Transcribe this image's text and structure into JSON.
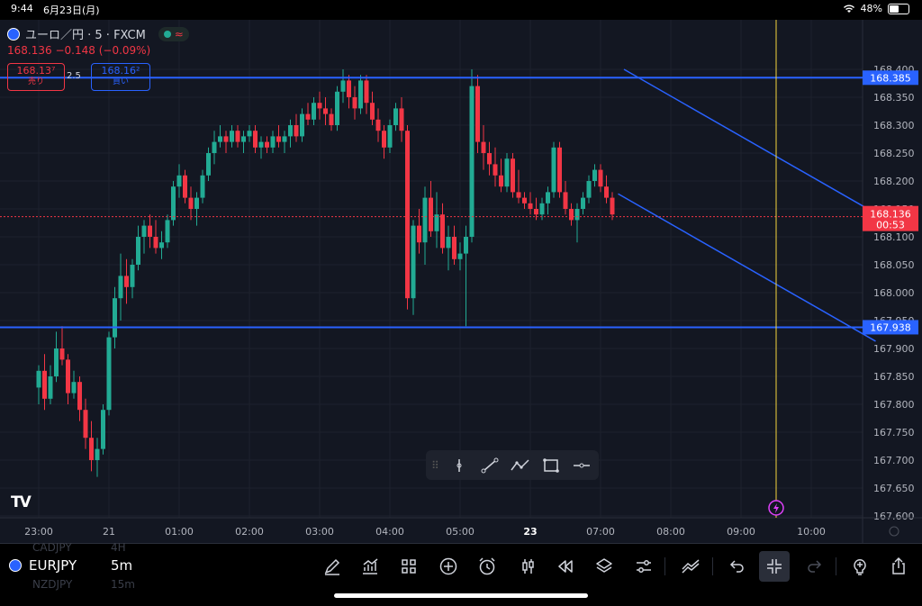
{
  "status": {
    "time": "9:44",
    "date": "6月23日(月)",
    "battery": "48%",
    "battery_level": 0.48
  },
  "header": {
    "symbol_title": "ユーロ／円 · 5 · FXCM",
    "last": "168.136",
    "change": "−0.148",
    "change_pct": "(−0.09%)"
  },
  "quotes": {
    "sell_price": "168.13⁷",
    "sell_label": "売り",
    "spread": "2.5",
    "buy_price": "168.16²",
    "buy_label": "買い"
  },
  "colors": {
    "bg": "#131722",
    "up": "#22ab94",
    "down": "#f23645",
    "line": "#2962ff",
    "cursor": "#f5d53d",
    "grid": "#1e222d"
  },
  "price_scale": {
    "min": 167.6,
    "max": 168.4,
    "step": 0.05,
    "ticks": [
      "168.400",
      "168.350",
      "168.300",
      "168.250",
      "168.200",
      "168.150",
      "168.100",
      "168.050",
      "168.000",
      "167.950",
      "167.900",
      "167.850",
      "167.800",
      "167.750",
      "167.700",
      "167.650",
      "167.600"
    ]
  },
  "time_axis": [
    {
      "label": "23:00",
      "t": 0
    },
    {
      "label": "21",
      "t": 12
    },
    {
      "label": "01:00",
      "t": 24
    },
    {
      "label": "02:00",
      "t": 36
    },
    {
      "label": "03:00",
      "t": 48
    },
    {
      "label": "04:00",
      "t": 60
    },
    {
      "label": "05:00",
      "t": 72
    },
    {
      "label": "23",
      "t": 84,
      "bold": true
    },
    {
      "label": "07:00",
      "t": 96
    },
    {
      "label": "08:00",
      "t": 108
    },
    {
      "label": "09:00",
      "t": 120
    },
    {
      "label": "10:00",
      "t": 132
    }
  ],
  "horizontal_lines": [
    {
      "price": 168.385,
      "label": "168.385"
    },
    {
      "price": 167.938,
      "label": "167.938"
    }
  ],
  "channel": {
    "upper": [
      {
        "t": 100,
        "p": 168.4
      },
      {
        "t": 143,
        "p": 168.142
      }
    ],
    "lower": [
      {
        "t": 99,
        "p": 168.177
      },
      {
        "t": 143,
        "p": 167.913
      }
    ]
  },
  "current": {
    "price": "168.136",
    "value": 168.136,
    "countdown": "00:53"
  },
  "cursor_t": 126,
  "candles": [
    [
      167.83,
      167.87,
      167.8,
      167.86
    ],
    [
      167.86,
      167.89,
      167.79,
      167.81
    ],
    [
      167.81,
      167.87,
      167.8,
      167.85
    ],
    [
      167.85,
      167.93,
      167.84,
      167.9
    ],
    [
      167.9,
      167.94,
      167.87,
      167.88
    ],
    [
      167.88,
      167.89,
      167.8,
      167.82
    ],
    [
      167.82,
      167.86,
      167.81,
      167.84
    ],
    [
      167.84,
      167.85,
      167.77,
      167.79
    ],
    [
      167.79,
      167.81,
      167.72,
      167.74
    ],
    [
      167.74,
      167.77,
      167.68,
      167.7
    ],
    [
      167.7,
      167.74,
      167.67,
      167.72
    ],
    [
      167.72,
      167.8,
      167.71,
      167.79
    ],
    [
      167.79,
      167.93,
      167.78,
      167.92
    ],
    [
      167.92,
      168.01,
      167.9,
      167.99
    ],
    [
      167.99,
      168.07,
      167.95,
      168.03
    ],
    [
      168.03,
      168.06,
      167.98,
      168.01
    ],
    [
      168.01,
      168.06,
      167.99,
      168.05
    ],
    [
      168.05,
      168.12,
      168.04,
      168.1
    ],
    [
      168.1,
      168.13,
      168.07,
      168.12
    ],
    [
      168.12,
      168.14,
      168.08,
      168.1
    ],
    [
      168.1,
      168.13,
      168.07,
      168.08
    ],
    [
      168.08,
      168.11,
      168.06,
      168.09
    ],
    [
      168.09,
      168.14,
      168.08,
      168.13
    ],
    [
      168.13,
      168.2,
      168.12,
      168.19
    ],
    [
      168.19,
      168.23,
      168.17,
      168.21
    ],
    [
      168.21,
      168.22,
      168.16,
      168.17
    ],
    [
      168.17,
      168.19,
      168.13,
      168.15
    ],
    [
      168.15,
      168.18,
      168.12,
      168.17
    ],
    [
      168.17,
      168.22,
      168.16,
      168.21
    ],
    [
      168.21,
      168.26,
      168.2,
      168.25
    ],
    [
      168.25,
      168.29,
      168.23,
      168.27
    ],
    [
      168.27,
      168.3,
      168.26,
      168.28
    ],
    [
      168.28,
      168.29,
      168.25,
      168.27
    ],
    [
      168.27,
      168.3,
      168.26,
      168.29
    ],
    [
      168.29,
      168.3,
      168.26,
      168.27
    ],
    [
      168.27,
      168.29,
      168.25,
      168.28
    ],
    [
      168.28,
      168.3,
      168.27,
      168.29
    ],
    [
      168.29,
      168.3,
      168.25,
      168.26
    ],
    [
      168.26,
      168.28,
      168.24,
      168.27
    ],
    [
      168.27,
      168.28,
      168.25,
      168.26
    ],
    [
      168.26,
      168.29,
      168.25,
      168.28
    ],
    [
      168.28,
      168.3,
      168.26,
      168.27
    ],
    [
      168.27,
      168.29,
      168.25,
      168.28
    ],
    [
      168.28,
      168.31,
      168.26,
      168.3
    ],
    [
      168.3,
      168.32,
      168.27,
      168.28
    ],
    [
      168.28,
      168.33,
      168.27,
      168.32
    ],
    [
      168.32,
      168.34,
      168.3,
      168.31
    ],
    [
      168.31,
      168.35,
      168.3,
      168.34
    ],
    [
      168.34,
      168.36,
      168.31,
      168.33
    ],
    [
      168.33,
      168.35,
      168.3,
      168.32
    ],
    [
      168.32,
      168.33,
      168.29,
      168.3
    ],
    [
      168.3,
      168.37,
      168.29,
      168.36
    ],
    [
      168.36,
      168.4,
      168.34,
      168.38
    ],
    [
      168.38,
      168.39,
      168.33,
      168.35
    ],
    [
      168.35,
      168.37,
      168.31,
      168.33
    ],
    [
      168.33,
      168.39,
      168.32,
      168.38
    ],
    [
      168.38,
      168.39,
      168.32,
      168.34
    ],
    [
      168.34,
      168.36,
      168.3,
      168.31
    ],
    [
      168.31,
      168.33,
      168.27,
      168.29
    ],
    [
      168.29,
      168.3,
      168.24,
      168.26
    ],
    [
      168.26,
      168.31,
      168.25,
      168.3
    ],
    [
      168.3,
      168.34,
      168.29,
      168.33
    ],
    [
      168.33,
      168.35,
      168.27,
      168.29
    ],
    [
      168.29,
      168.3,
      167.97,
      167.99
    ],
    [
      167.99,
      168.13,
      167.96,
      168.12
    ],
    [
      168.12,
      168.15,
      168.07,
      168.09
    ],
    [
      168.09,
      168.19,
      168.05,
      168.17
    ],
    [
      168.17,
      168.2,
      168.1,
      168.11
    ],
    [
      168.11,
      168.18,
      168.08,
      168.14
    ],
    [
      168.14,
      168.16,
      168.07,
      168.08
    ],
    [
      168.08,
      168.12,
      168.04,
      168.1
    ],
    [
      168.1,
      168.12,
      168.05,
      168.06
    ],
    [
      168.06,
      168.09,
      168.04,
      168.07
    ],
    [
      168.07,
      168.12,
      167.94,
      168.1
    ],
    [
      168.1,
      168.4,
      168.09,
      168.37
    ],
    [
      168.37,
      168.39,
      168.25,
      168.27
    ],
    [
      168.27,
      168.3,
      168.22,
      168.25
    ],
    [
      168.25,
      168.27,
      168.21,
      168.23
    ],
    [
      168.23,
      168.26,
      168.19,
      168.21
    ],
    [
      168.21,
      168.24,
      168.18,
      168.19
    ],
    [
      168.19,
      168.25,
      168.18,
      168.24
    ],
    [
      168.24,
      168.25,
      168.17,
      168.18
    ],
    [
      168.18,
      168.22,
      168.16,
      168.17
    ],
    [
      168.17,
      168.18,
      168.15,
      168.16
    ],
    [
      168.16,
      168.18,
      168.14,
      168.15
    ],
    [
      168.15,
      168.17,
      168.13,
      168.14
    ],
    [
      168.14,
      168.17,
      168.13,
      168.16
    ],
    [
      168.16,
      168.19,
      168.14,
      168.18
    ],
    [
      168.18,
      168.27,
      168.17,
      168.26
    ],
    [
      168.26,
      168.27,
      168.17,
      168.18
    ],
    [
      168.18,
      168.2,
      168.14,
      168.15
    ],
    [
      168.15,
      168.16,
      168.12,
      168.13
    ],
    [
      168.13,
      168.16,
      168.09,
      168.15
    ],
    [
      168.15,
      168.18,
      168.14,
      168.17
    ],
    [
      168.17,
      168.21,
      168.16,
      168.2
    ],
    [
      168.2,
      168.23,
      168.19,
      168.22
    ],
    [
      168.22,
      168.23,
      168.18,
      168.19
    ],
    [
      168.19,
      168.21,
      168.16,
      168.17
    ],
    [
      168.17,
      168.18,
      168.13,
      168.14
    ]
  ],
  "bottom": {
    "symbol": "EURJPY",
    "interval": "5m",
    "ghost_above": [
      "CADJPY",
      "4H"
    ],
    "ghost_below": [
      "NZDJPY",
      "15m"
    ],
    "icons": [
      "brush-icon",
      "indicators-icon",
      "layout-grid-icon",
      "plus-circle-icon",
      "alarm-icon",
      "candle-style-icon",
      "replay-icon",
      "layers-icon",
      "settings-sliders-icon",
      "strategy-icon",
      "undo-icon",
      "collapse-icon",
      "redo-icon",
      "ideas-icon",
      "share-icon"
    ]
  },
  "drawing_toolbar": [
    "vertical-line-icon",
    "trend-line-icon",
    "path-icon",
    "rectangle-icon",
    "horizontal-ray-icon"
  ]
}
